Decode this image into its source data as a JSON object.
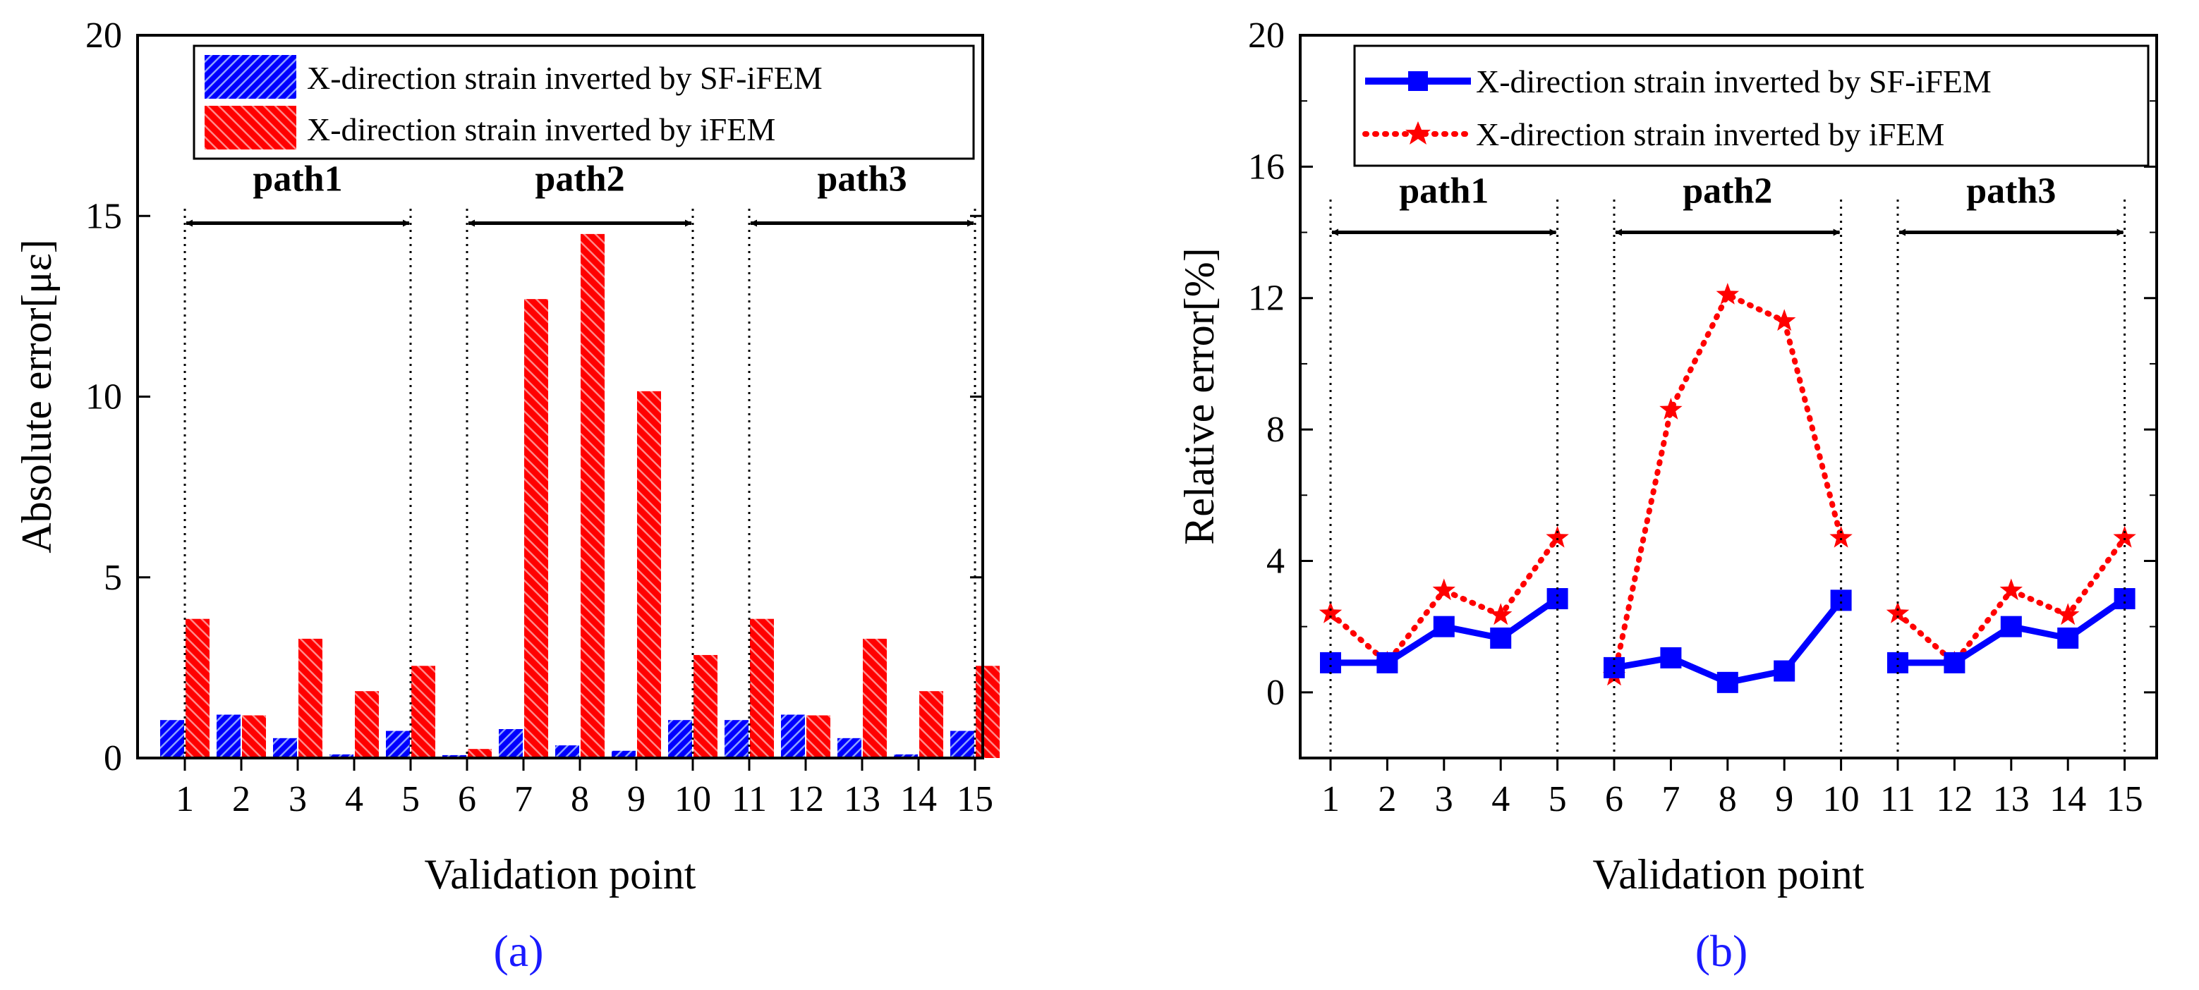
{
  "chart_data": [
    {
      "type": "bar",
      "title": "",
      "subfigure_label": "(a)",
      "xlabel": "Validation point",
      "ylabel": "Absolute error[με]",
      "ylim": [
        0,
        20
      ],
      "yticks": [
        "0",
        "5",
        "10",
        "15",
        "20"
      ],
      "categories": [
        "1",
        "2",
        "3",
        "4",
        "5",
        "6",
        "7",
        "8",
        "9",
        "10",
        "11",
        "12",
        "13",
        "14",
        "15"
      ],
      "series": [
        {
          "name": "X-direction strain inverted by SF-iFEM",
          "color": "#0000ff",
          "values": [
            1.05,
            1.2,
            0.55,
            0.1,
            0.75,
            0.08,
            0.8,
            0.35,
            0.2,
            1.05,
            1.05,
            1.2,
            0.55,
            0.1,
            0.75
          ]
        },
        {
          "name": "X-direction strain inverted by iFEM",
          "color": "#ff0000",
          "values": [
            3.85,
            1.18,
            3.3,
            1.85,
            2.55,
            0.25,
            12.7,
            14.5,
            10.15,
            2.85,
            3.85,
            1.18,
            3.3,
            1.85,
            2.55
          ]
        }
      ],
      "paths": [
        {
          "label": "path1",
          "from": 1,
          "to": 5
        },
        {
          "label": "path2",
          "from": 6,
          "to": 10
        },
        {
          "label": "path3",
          "from": 11,
          "to": 15
        }
      ],
      "legend_position": "top-right"
    },
    {
      "type": "line",
      "title": "",
      "subfigure_label": "(b)",
      "xlabel": "Validation point",
      "ylabel": "Relative error[%]",
      "ylim": [
        -2,
        20
      ],
      "yticks": [
        "0",
        "4",
        "8",
        "12",
        "16",
        "20"
      ],
      "categories": [
        "1",
        "2",
        "3",
        "4",
        "5",
        "6",
        "7",
        "8",
        "9",
        "10",
        "11",
        "12",
        "13",
        "14",
        "15"
      ],
      "series": [
        {
          "name": "X-direction strain inverted by SF-iFEM",
          "color": "#0000ff",
          "marker": "square",
          "style": "solid",
          "values": [
            0.9,
            0.9,
            2.0,
            1.65,
            2.85,
            0.75,
            1.05,
            0.3,
            0.65,
            2.8,
            0.9,
            0.9,
            2.0,
            1.65,
            2.85
          ]
        },
        {
          "name": "X-direction strain inverted by iFEM",
          "color": "#ff0000",
          "marker": "star",
          "style": "dotted",
          "values": [
            2.4,
            0.9,
            3.1,
            2.35,
            4.7,
            0.5,
            8.6,
            12.1,
            11.3,
            4.7,
            2.4,
            0.9,
            3.1,
            2.35,
            4.7
          ]
        }
      ],
      "paths": [
        {
          "label": "path1",
          "from": 1,
          "to": 5
        },
        {
          "label": "path2",
          "from": 6,
          "to": 10
        },
        {
          "label": "path3",
          "from": 11,
          "to": 15
        }
      ],
      "legend_position": "top-right"
    }
  ]
}
